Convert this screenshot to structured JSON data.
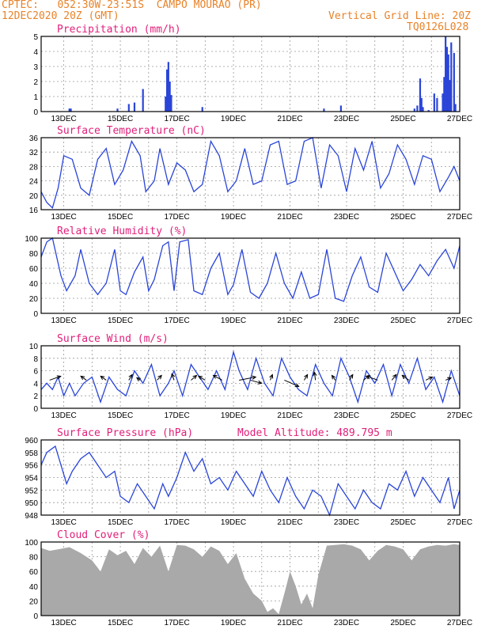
{
  "header": {
    "source": "CPTEC:",
    "coords": "052:30W-23:51S",
    "station": "CAMPO MOURAO (PR)",
    "run": "12DEC2020 20Z (GMT)",
    "grid_note": "Vertical Grid Line: 20Z",
    "model": "TQ0126L028"
  },
  "model_altitude": "Model Altitude: 489.795 m",
  "x_ticks": [
    "13DEC",
    "15DEC",
    "17DEC",
    "19DEC",
    "21DEC",
    "23DEC",
    "25DEC",
    "27DEC"
  ],
  "colors": {
    "line": "#2a45d8",
    "cloud": "#a9a9a9",
    "title": "#e0207a",
    "header": "#e8832a"
  },
  "chart_data": [
    {
      "type": "bar",
      "title": "Precipitation (mm/h)",
      "ylim": [
        0,
        5
      ],
      "yticks": [
        0,
        1,
        2,
        3,
        4,
        5
      ],
      "xlim_days": [
        12.2,
        27.0
      ],
      "x": [
        13.2,
        13.25,
        14.9,
        15.3,
        15.5,
        15.8,
        16.6,
        16.65,
        16.7,
        16.75,
        16.8,
        17.9,
        22.2,
        22.8,
        25.4,
        25.5,
        25.6,
        25.65,
        25.7,
        25.9,
        26.1,
        26.2,
        26.4,
        26.45,
        26.5,
        26.55,
        26.6,
        26.65,
        26.7,
        26.8,
        26.85
      ],
      "values": [
        0.2,
        0.2,
        0.2,
        0.5,
        0.6,
        1.5,
        1.0,
        2.8,
        3.3,
        2.0,
        1.1,
        0.3,
        0.2,
        0.4,
        0.2,
        0.4,
        2.2,
        0.9,
        0.3,
        0.1,
        1.2,
        0.9,
        1.2,
        2.3,
        5.0,
        4.3,
        3.8,
        2.1,
        4.6,
        3.9,
        0.5
      ]
    },
    {
      "type": "line",
      "title": "Surface Temperature (nC)",
      "ylim": [
        16,
        36
      ],
      "yticks": [
        16,
        20,
        24,
        28,
        32,
        36
      ],
      "xlim_days": [
        12.2,
        27.0
      ],
      "x": [
        12.2,
        12.4,
        12.6,
        12.8,
        13.0,
        13.3,
        13.6,
        13.9,
        14.2,
        14.5,
        14.8,
        15.1,
        15.4,
        15.7,
        15.9,
        16.2,
        16.4,
        16.7,
        17.0,
        17.3,
        17.6,
        17.9,
        18.2,
        18.5,
        18.8,
        19.1,
        19.4,
        19.7,
        20.0,
        20.3,
        20.6,
        20.9,
        21.2,
        21.5,
        21.8,
        22.1,
        22.4,
        22.7,
        23.0,
        23.3,
        23.6,
        23.9,
        24.2,
        24.5,
        24.8,
        25.1,
        25.4,
        25.7,
        26.0,
        26.3,
        26.6,
        26.8,
        27.0
      ],
      "values": [
        21,
        18,
        16.5,
        22,
        31,
        30,
        22,
        20,
        30,
        33,
        23,
        27,
        35,
        31,
        21,
        24,
        33,
        23,
        29,
        27,
        21,
        23,
        35,
        31,
        21,
        24,
        33,
        23,
        24,
        34,
        35,
        23,
        24,
        35,
        36,
        22,
        34,
        31,
        21,
        33,
        27,
        35,
        22,
        26,
        34,
        30,
        23,
        31,
        30,
        21,
        25,
        28,
        24
      ]
    },
    {
      "type": "line",
      "title": "Relative Humidity (%)",
      "ylim": [
        0,
        100
      ],
      "yticks": [
        0,
        20,
        40,
        60,
        80,
        100
      ],
      "xlim_days": [
        12.2,
        27.0
      ],
      "x": [
        12.2,
        12.4,
        12.6,
        12.9,
        13.1,
        13.4,
        13.6,
        13.9,
        14.2,
        14.5,
        14.8,
        15.0,
        15.2,
        15.5,
        15.8,
        16.0,
        16.2,
        16.5,
        16.7,
        16.9,
        17.1,
        17.4,
        17.6,
        17.9,
        18.2,
        18.5,
        18.8,
        19.0,
        19.3,
        19.6,
        19.9,
        20.2,
        20.5,
        20.8,
        21.1,
        21.4,
        21.7,
        22.0,
        22.3,
        22.6,
        22.9,
        23.2,
        23.5,
        23.8,
        24.1,
        24.4,
        24.7,
        25.0,
        25.3,
        25.6,
        25.9,
        26.2,
        26.5,
        26.8,
        27.0
      ],
      "values": [
        75,
        95,
        100,
        50,
        30,
        50,
        85,
        40,
        25,
        40,
        85,
        30,
        25,
        55,
        75,
        30,
        45,
        90,
        95,
        30,
        95,
        98,
        30,
        25,
        60,
        80,
        25,
        38,
        85,
        28,
        20,
        40,
        80,
        40,
        20,
        55,
        20,
        25,
        85,
        20,
        16,
        50,
        75,
        35,
        28,
        80,
        55,
        30,
        45,
        65,
        50,
        70,
        85,
        60,
        90
      ]
    },
    {
      "type": "line",
      "title": "Surface Wind (m/s)",
      "ylim": [
        0,
        10
      ],
      "yticks": [
        0,
        2,
        4,
        6,
        8,
        10
      ],
      "xlim_days": [
        12.2,
        27.0
      ],
      "x": [
        12.2,
        12.4,
        12.6,
        12.8,
        13.0,
        13.2,
        13.4,
        13.7,
        14.0,
        14.3,
        14.6,
        14.9,
        15.2,
        15.5,
        15.8,
        16.1,
        16.4,
        16.7,
        16.9,
        17.2,
        17.5,
        17.8,
        18.1,
        18.4,
        18.7,
        19.0,
        19.2,
        19.5,
        19.8,
        20.1,
        20.4,
        20.7,
        21.0,
        21.3,
        21.6,
        21.9,
        22.2,
        22.5,
        22.8,
        23.1,
        23.4,
        23.7,
        24.0,
        24.3,
        24.6,
        24.9,
        25.2,
        25.5,
        25.8,
        26.1,
        26.4,
        26.7,
        27.0
      ],
      "values": [
        3,
        4,
        3,
        5,
        2,
        4,
        2,
        4,
        5,
        1,
        5,
        3,
        2,
        6,
        4,
        7,
        2,
        4,
        6,
        2,
        7,
        5,
        3,
        6,
        3,
        9,
        6,
        3,
        8,
        4,
        2,
        8,
        5,
        3,
        2,
        7,
        4,
        2,
        8,
        5,
        1,
        6,
        4,
        7,
        2,
        7,
        4,
        8,
        3,
        5,
        1,
        6,
        2
      ],
      "arrows": [
        {
          "day": 12.5,
          "u": 1,
          "v": 0.5
        },
        {
          "day": 13.8,
          "u": -0.5,
          "v": 0.5
        },
        {
          "day": 14.5,
          "u": -0.5,
          "v": 0.5
        },
        {
          "day": 15.3,
          "u": 0.3,
          "v": 0.7
        },
        {
          "day": 15.7,
          "u": -0.3,
          "v": 0.3
        },
        {
          "day": 16.3,
          "u": 0.4,
          "v": 0.6
        },
        {
          "day": 16.9,
          "u": -0.2,
          "v": 0.8
        },
        {
          "day": 17.5,
          "u": 0.5,
          "v": 0.6
        },
        {
          "day": 18.0,
          "u": -0.6,
          "v": 0.5
        },
        {
          "day": 18.6,
          "u": -0.8,
          "v": 0.6
        },
        {
          "day": 19.2,
          "u": 1.5,
          "v": 0.4
        },
        {
          "day": 19.6,
          "u": 1.0,
          "v": -0.4
        },
        {
          "day": 20.3,
          "u": 0.2,
          "v": 0.7
        },
        {
          "day": 20.8,
          "u": 1.3,
          "v": -0.8
        },
        {
          "day": 21.5,
          "u": 0.3,
          "v": 0.7
        },
        {
          "day": 21.9,
          "u": -0.1,
          "v": 1.0
        },
        {
          "day": 22.6,
          "u": -0.3,
          "v": 0.6
        },
        {
          "day": 23.1,
          "u": 0.3,
          "v": 0.7
        },
        {
          "day": 23.6,
          "u": 0.5,
          "v": 0.6
        },
        {
          "day": 24.1,
          "u": -1.0,
          "v": 0.5
        },
        {
          "day": 24.6,
          "u": 0.4,
          "v": 0.7
        },
        {
          "day": 25.2,
          "u": -0.6,
          "v": 0.6
        },
        {
          "day": 25.8,
          "u": 0.6,
          "v": 0.4
        },
        {
          "day": 26.5,
          "u": 0.5,
          "v": 0.3
        }
      ]
    },
    {
      "type": "line",
      "title": "Surface Pressure (hPa)",
      "ylim": [
        948,
        960
      ],
      "yticks": [
        948,
        950,
        952,
        954,
        956,
        958,
        960
      ],
      "xlim_days": [
        12.2,
        27.0
      ],
      "x": [
        12.2,
        12.4,
        12.7,
        12.9,
        13.1,
        13.3,
        13.6,
        13.9,
        14.2,
        14.5,
        14.8,
        15.0,
        15.3,
        15.6,
        15.9,
        16.2,
        16.5,
        16.7,
        17.0,
        17.3,
        17.6,
        17.9,
        18.2,
        18.5,
        18.8,
        19.1,
        19.4,
        19.7,
        20.0,
        20.3,
        20.6,
        20.9,
        21.2,
        21.5,
        21.8,
        22.1,
        22.4,
        22.7,
        23.0,
        23.3,
        23.6,
        23.9,
        24.2,
        24.5,
        24.8,
        25.1,
        25.4,
        25.7,
        26.0,
        26.3,
        26.6,
        26.8,
        27.0
      ],
      "values": [
        956,
        958,
        959,
        956,
        953,
        955,
        957,
        958,
        956,
        954,
        955,
        951,
        950,
        953,
        951,
        949,
        953,
        951,
        954,
        958,
        955,
        957,
        953,
        954,
        952,
        955,
        953,
        951,
        955,
        952,
        950,
        954,
        951,
        949,
        952,
        951,
        948,
        953,
        951,
        949,
        952,
        950,
        949,
        953,
        952,
        955,
        951,
        954,
        952,
        950,
        954,
        949,
        952
      ]
    },
    {
      "type": "area",
      "title": "Cloud Cover (%)",
      "ylim": [
        0,
        100
      ],
      "yticks": [
        0,
        20,
        40,
        60,
        80,
        100
      ],
      "xlim_days": [
        12.2,
        27.0
      ],
      "x": [
        12.2,
        12.5,
        12.8,
        13.2,
        13.6,
        14.0,
        14.3,
        14.6,
        14.9,
        15.2,
        15.5,
        15.8,
        16.1,
        16.4,
        16.7,
        17.0,
        17.3,
        17.6,
        17.9,
        18.2,
        18.5,
        18.8,
        19.1,
        19.4,
        19.7,
        20.0,
        20.2,
        20.4,
        20.6,
        20.8,
        21.0,
        21.2,
        21.4,
        21.6,
        21.8,
        22.0,
        22.3,
        22.6,
        22.9,
        23.2,
        23.5,
        23.8,
        24.1,
        24.4,
        24.7,
        25.0,
        25.3,
        25.6,
        25.9,
        26.2,
        26.5,
        26.8,
        27.0
      ],
      "values": [
        92,
        88,
        90,
        93,
        85,
        75,
        60,
        90,
        82,
        88,
        70,
        92,
        80,
        95,
        60,
        96,
        95,
        90,
        80,
        94,
        88,
        70,
        85,
        50,
        30,
        20,
        5,
        10,
        2,
        30,
        60,
        40,
        15,
        30,
        10,
        55,
        95,
        96,
        97,
        95,
        90,
        75,
        88,
        96,
        94,
        90,
        75,
        90,
        94,
        96,
        95,
        97,
        96
      ]
    }
  ]
}
